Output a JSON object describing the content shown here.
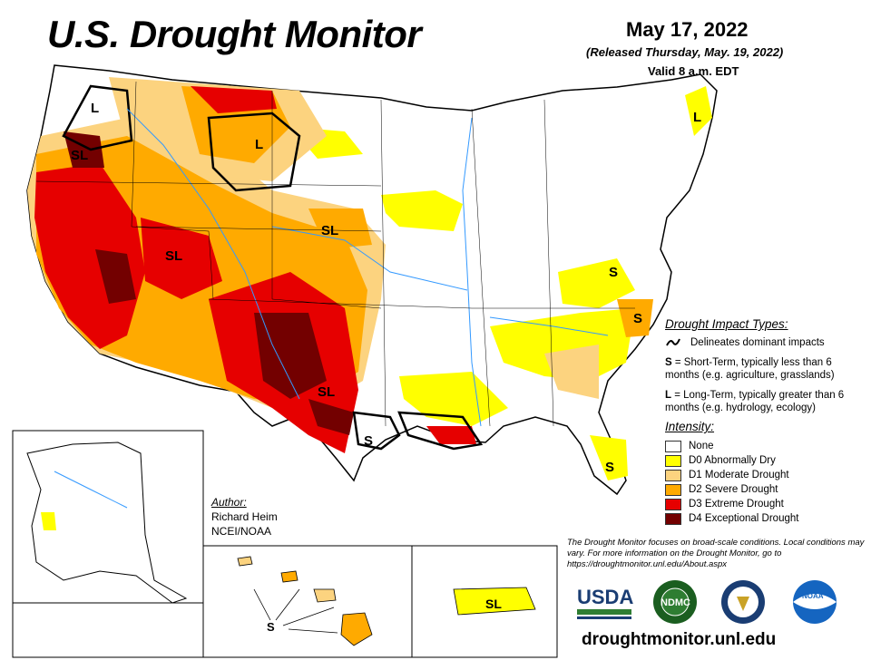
{
  "header": {
    "title": "U.S. Drought Monitor",
    "date": "May 17, 2022",
    "released": "(Released Thursday, May. 19, 2022)",
    "valid": "Valid 8 a.m. EDT"
  },
  "map": {
    "labels": [
      "L",
      "L",
      "SL",
      "SL",
      "SL",
      "SL",
      "S",
      "S",
      "S",
      "L",
      "S",
      "SL",
      "S"
    ]
  },
  "legend": {
    "impact_title": "Drought Impact Types:",
    "delineates": "Delineates dominant impacts",
    "short_term_code": "S",
    "short_term": " = Short-Term, typically less than 6 months (e.g. agriculture, grasslands)",
    "long_term_code": "L",
    "long_term": " = Long-Term, typically greater than 6 months (e.g. hydrology, ecology)",
    "intensity_title": "Intensity:",
    "categories": [
      {
        "label": "None",
        "color": "#ffffff"
      },
      {
        "label": "D0 Abnormally Dry",
        "color": "#ffff00"
      },
      {
        "label": "D1 Moderate Drought",
        "color": "#fcd37f"
      },
      {
        "label": "D2 Severe Drought",
        "color": "#ffaa00"
      },
      {
        "label": "D3 Extreme Drought",
        "color": "#e60000"
      },
      {
        "label": "D4 Exceptional Drought",
        "color": "#730000"
      }
    ]
  },
  "author": {
    "label": "Author:",
    "name": "Richard Heim",
    "org": "NCEI/NOAA"
  },
  "note": "The Drought Monitor focuses on broad-scale conditions. Local conditions may vary. For more information on the Drought Monitor, go to https://droughtmonitor.unl.edu/About.aspx",
  "logos": {
    "usda": "USDA",
    "ndmc": "NDMC",
    "noaa": "NOAA"
  },
  "footer_url": "droughtmonitor.unl.edu"
}
